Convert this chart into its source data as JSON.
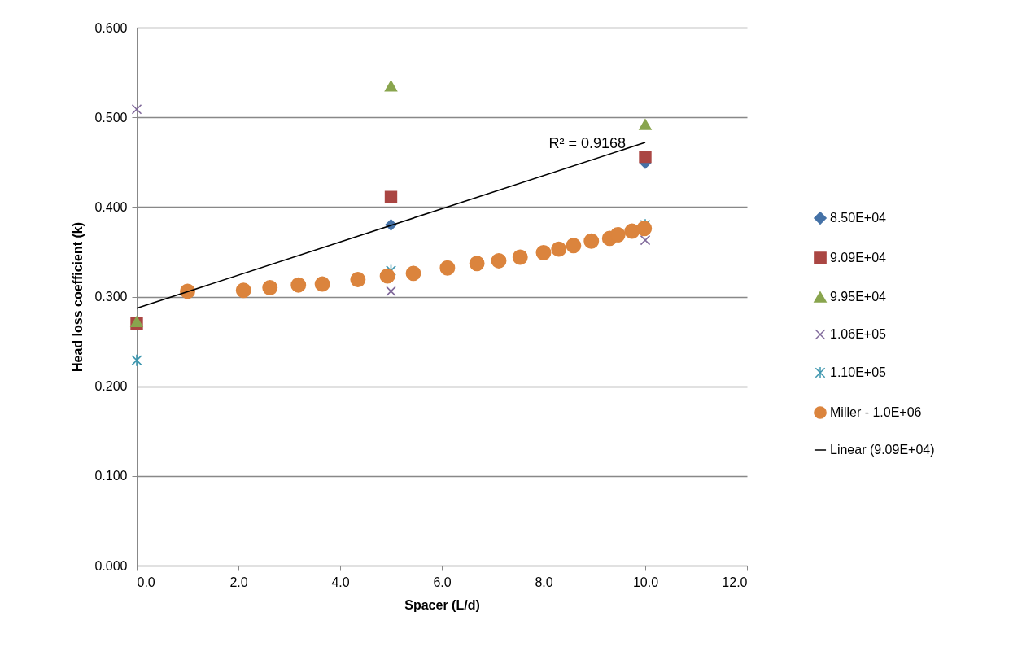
{
  "chart_data": {
    "type": "scatter",
    "xlabel": "Spacer (L/d)",
    "ylabel": "Head loss coefficient (k)",
    "xlim": [
      0,
      12
    ],
    "ylim": [
      0,
      0.6
    ],
    "xticks": [
      {
        "value": 0,
        "label": "0.0"
      },
      {
        "value": 2,
        "label": "2.0"
      },
      {
        "value": 4,
        "label": "4.0"
      },
      {
        "value": 6,
        "label": "6.0"
      },
      {
        "value": 8,
        "label": "8.0"
      },
      {
        "value": 10,
        "label": "10.0"
      },
      {
        "value": 12,
        "label": "12.0"
      }
    ],
    "yticks": [
      {
        "value": 0,
        "label": "0.000"
      },
      {
        "value": 0.1,
        "label": "0.100"
      },
      {
        "value": 0.2,
        "label": "0.200"
      },
      {
        "value": 0.3,
        "label": "0.300"
      },
      {
        "value": 0.4,
        "label": "0.400"
      },
      {
        "value": 0.5,
        "label": "0.500"
      },
      {
        "value": 0.6,
        "label": "0.600"
      }
    ],
    "grid": "y",
    "legend": "right",
    "series": [
      {
        "name": "8.50E+04",
        "color": "#4572a7",
        "marker": "diamond",
        "x": [
          5,
          10
        ],
        "values": [
          0.38,
          0.449
        ]
      },
      {
        "name": "9.09E+04",
        "color": "#aa4643",
        "marker": "square",
        "x": [
          0,
          5,
          10
        ],
        "values": [
          0.27,
          0.411,
          0.456
        ]
      },
      {
        "name": "9.95E+04",
        "color": "#89a54e",
        "marker": "triangle",
        "x": [
          0,
          5,
          10
        ],
        "values": [
          0.272,
          0.535,
          0.492
        ]
      },
      {
        "name": "1.06E+05",
        "color": "#80699b",
        "marker": "cross",
        "x": [
          0,
          5,
          10
        ],
        "values": [
          0.509,
          0.306,
          0.363
        ]
      },
      {
        "name": "1.10E+05",
        "color": "#3d96ae",
        "x": [
          0,
          5,
          10
        ],
        "values": [
          0.229,
          0.329,
          0.38
        ]
      },
      {
        "name": "Miller - 1.0E+06",
        "color": "#db843d",
        "marker": "circle",
        "x": [
          1.0,
          2.1,
          2.62,
          3.18,
          3.65,
          4.35,
          4.93,
          5.44,
          6.11,
          6.69,
          7.12,
          7.54,
          8.0,
          8.3,
          8.59,
          8.94,
          9.3,
          9.46,
          9.74,
          9.98
        ],
        "values": [
          0.306,
          0.307,
          0.31,
          0.313,
          0.314,
          0.319,
          0.323,
          0.326,
          0.332,
          0.337,
          0.34,
          0.344,
          0.349,
          0.353,
          0.357,
          0.362,
          0.365,
          0.369,
          0.373,
          0.376
        ]
      },
      {
        "name": "Linear (9.09E+04)",
        "type": "line",
        "color": "#000000",
        "x": [
          0,
          10
        ],
        "values": [
          0.287,
          0.472
        ]
      }
    ],
    "annotations": [
      "R² = 0.9168"
    ]
  }
}
